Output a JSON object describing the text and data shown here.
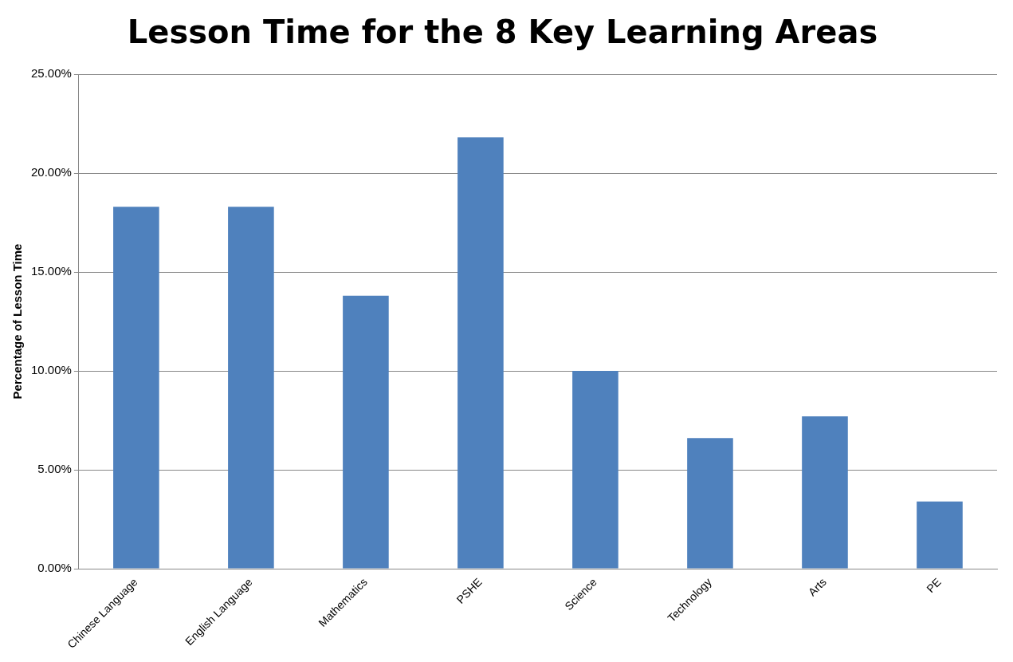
{
  "chart_data": {
    "type": "bar",
    "title": "Lesson Time for the 8 Key Learning Areas",
    "ylabel": "Percentage of Lesson Time",
    "categories": [
      "Chinese Language",
      "English Language",
      "Mathematics",
      "PSHE",
      "Science",
      "Technology",
      "Arts",
      "PE"
    ],
    "values": [
      18.3,
      18.3,
      13.8,
      21.8,
      10.0,
      6.6,
      7.7,
      3.4
    ],
    "color": "#4f81bd",
    "ylim": [
      0,
      25
    ],
    "yticks": [
      {
        "value": 0,
        "label": "0.00%"
      },
      {
        "value": 5,
        "label": "5.00%"
      },
      {
        "value": 10,
        "label": "10.00%"
      },
      {
        "value": 15,
        "label": "15.00%"
      },
      {
        "value": 20,
        "label": "20.00%"
      },
      {
        "value": 25,
        "label": "25.00%"
      }
    ],
    "grid": "y",
    "legend": false
  }
}
